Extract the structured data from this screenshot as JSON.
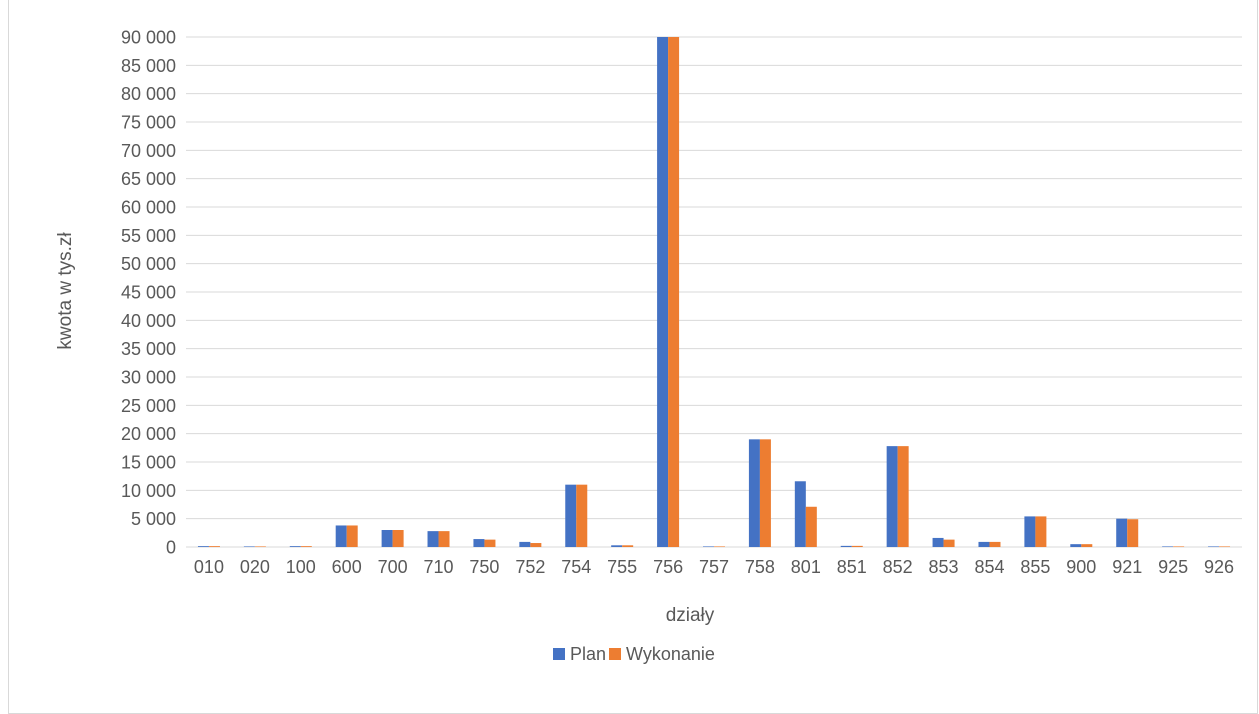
{
  "chart_data": {
    "type": "bar",
    "title": "",
    "xlabel": "działy",
    "ylabel": "kwota w tys.zł",
    "ylim": [
      0,
      90000
    ],
    "ytick_step": 5000,
    "ytick_labels": [
      "0",
      "5 000",
      "10 000",
      "15 000",
      "20 000",
      "25 000",
      "30 000",
      "35 000",
      "40 000",
      "45 000",
      "50 000",
      "55 000",
      "60 000",
      "65 000",
      "70 000",
      "75 000",
      "80 000",
      "85 000",
      "90 000"
    ],
    "grid": true,
    "legend_position": "bottom",
    "categories": [
      "010",
      "020",
      "100",
      "600",
      "700",
      "710",
      "750",
      "752",
      "754",
      "755",
      "756",
      "757",
      "758",
      "801",
      "851",
      "852",
      "853",
      "854",
      "855",
      "900",
      "921",
      "925",
      "926"
    ],
    "series": [
      {
        "name": "Plan",
        "color": "#4472C4",
        "values": [
          150,
          100,
          150,
          3800,
          3000,
          2800,
          1400,
          900,
          11000,
          300,
          90000,
          100,
          19000,
          11600,
          200,
          17800,
          1600,
          900,
          5400,
          500,
          5000,
          100,
          100
        ]
      },
      {
        "name": "Wykonanie",
        "color": "#ED7D31",
        "values": [
          150,
          100,
          150,
          3800,
          3000,
          2800,
          1300,
          700,
          11000,
          300,
          90000,
          100,
          19000,
          7100,
          200,
          17800,
          1300,
          900,
          5400,
          500,
          4900,
          100,
          100
        ]
      }
    ]
  }
}
